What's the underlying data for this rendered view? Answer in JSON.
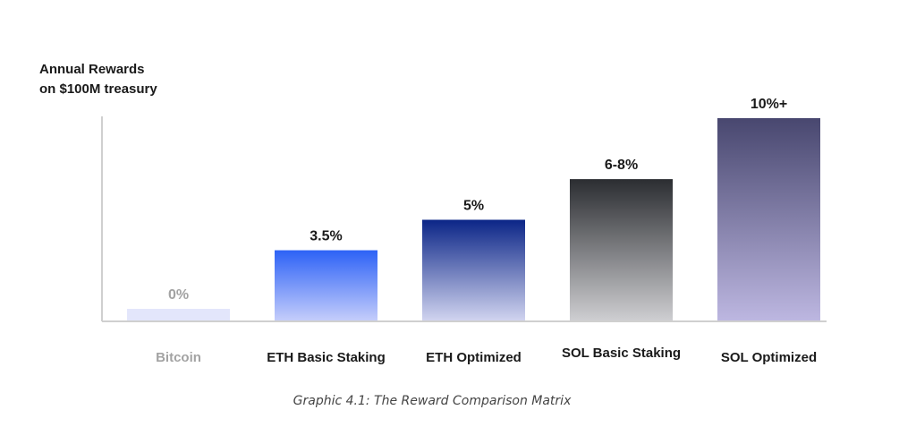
{
  "chart_data": {
    "type": "bar",
    "ylabel": "Annual Rewards\non $100M treasury",
    "caption": "Graphic 4.1: The Reward Comparison Matrix",
    "categories": [
      "Bitcoin",
      "ETH Basic Staking",
      "ETH Optimized",
      "SOL Basic Staking",
      "SOL Optimized"
    ],
    "values": [
      0,
      3.5,
      5,
      7,
      10
    ],
    "value_labels": [
      "0%",
      "3.5%",
      "5%",
      "6-8%",
      "10%+"
    ],
    "ylim": [
      0,
      10
    ],
    "grid": false,
    "legend": "none",
    "category_label_colors": [
      "#a3a3a3",
      "#1a1a1a",
      "#1a1a1a",
      "#1a1a1a",
      "#1a1a1a"
    ],
    "bar_gradients": [
      [
        "#e3e6fb",
        "#e3e6fb"
      ],
      [
        "#2d62f6",
        "#c6cefb"
      ],
      [
        "#0b2587",
        "#d2d5f0"
      ],
      [
        "#2b2d31",
        "#cfcfd2"
      ],
      [
        "#48476f",
        "#bdb7e1"
      ]
    ]
  }
}
